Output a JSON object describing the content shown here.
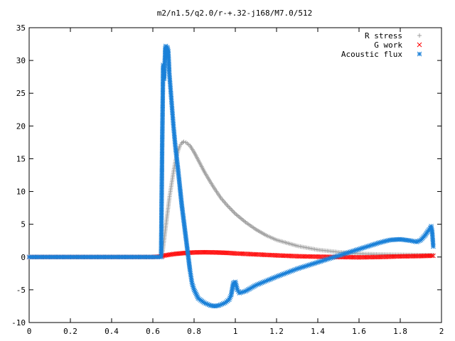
{
  "chart_data": {
    "type": "scatter",
    "title": "m2/n1.5/q2.0/r-+.32-j168/M7.0/512",
    "xlabel": "",
    "ylabel": "",
    "xlim": [
      0,
      2
    ],
    "ylim": [
      -10,
      35
    ],
    "x_ticks": [
      "0",
      "0.2",
      "0.4",
      "0.6",
      "0.8",
      "1",
      "1.2",
      "1.4",
      "1.6",
      "1.8",
      "2"
    ],
    "y_ticks": [
      "-10",
      "-5",
      "0",
      "5",
      "10",
      "15",
      "20",
      "25",
      "30",
      "35"
    ],
    "grid": false,
    "legend_position": "top-right",
    "series": [
      {
        "name": "R stress",
        "color": "#a0a0a0",
        "marker": "plus",
        "points": [
          [
            0.0,
            0.0
          ],
          [
            0.2,
            0.0
          ],
          [
            0.4,
            0.0
          ],
          [
            0.6,
            0.0
          ],
          [
            0.645,
            0.1
          ],
          [
            0.65,
            1.5
          ],
          [
            0.66,
            4.0
          ],
          [
            0.67,
            6.5
          ],
          [
            0.68,
            9.0
          ],
          [
            0.69,
            11.0
          ],
          [
            0.7,
            13.0
          ],
          [
            0.71,
            14.7
          ],
          [
            0.72,
            16.0
          ],
          [
            0.73,
            16.9
          ],
          [
            0.74,
            17.4
          ],
          [
            0.75,
            17.6
          ],
          [
            0.76,
            17.5
          ],
          [
            0.78,
            17.0
          ],
          [
            0.8,
            16.0
          ],
          [
            0.82,
            14.8
          ],
          [
            0.85,
            13.0
          ],
          [
            0.88,
            11.4
          ],
          [
            0.9,
            10.4
          ],
          [
            0.93,
            9.0
          ],
          [
            0.96,
            7.9
          ],
          [
            1.0,
            6.6
          ],
          [
            1.05,
            5.3
          ],
          [
            1.1,
            4.2
          ],
          [
            1.15,
            3.3
          ],
          [
            1.2,
            2.6
          ],
          [
            1.3,
            1.7
          ],
          [
            1.4,
            1.1
          ],
          [
            1.5,
            0.75
          ],
          [
            1.6,
            0.5
          ],
          [
            1.7,
            0.4
          ],
          [
            1.8,
            0.35
          ],
          [
            1.9,
            0.3
          ],
          [
            1.96,
            0.3
          ]
        ]
      },
      {
        "name": "G work",
        "color": "#ff0000",
        "marker": "cross",
        "points": [
          [
            0.0,
            0.0
          ],
          [
            0.2,
            0.0
          ],
          [
            0.4,
            0.0
          ],
          [
            0.6,
            0.0
          ],
          [
            0.645,
            0.1
          ],
          [
            0.65,
            0.2
          ],
          [
            0.7,
            0.45
          ],
          [
            0.75,
            0.6
          ],
          [
            0.8,
            0.7
          ],
          [
            0.85,
            0.72
          ],
          [
            0.9,
            0.7
          ],
          [
            0.95,
            0.65
          ],
          [
            1.0,
            0.55
          ],
          [
            1.1,
            0.4
          ],
          [
            1.2,
            0.25
          ],
          [
            1.3,
            0.12
          ],
          [
            1.4,
            0.05
          ],
          [
            1.5,
            0.0
          ],
          [
            1.6,
            -0.05
          ],
          [
            1.7,
            0.0
          ],
          [
            1.8,
            0.1
          ],
          [
            1.9,
            0.15
          ],
          [
            1.96,
            0.2
          ]
        ]
      },
      {
        "name": "Acoustic flux",
        "color": "#1a80d8",
        "marker": "star",
        "points": [
          [
            0.0,
            0.0
          ],
          [
            0.2,
            0.0
          ],
          [
            0.4,
            0.0
          ],
          [
            0.6,
            0.0
          ],
          [
            0.64,
            0.0
          ],
          [
            0.645,
            16.4
          ],
          [
            0.65,
            29.3
          ],
          [
            0.655,
            27.2
          ],
          [
            0.66,
            31.8
          ],
          [
            0.663,
            32.2
          ],
          [
            0.667,
            30.5
          ],
          [
            0.67,
            32.0
          ],
          [
            0.675,
            31.4
          ],
          [
            0.68,
            28.0
          ],
          [
            0.685,
            26.0
          ],
          [
            0.69,
            24.0
          ],
          [
            0.695,
            22.0
          ],
          [
            0.7,
            20.0
          ],
          [
            0.71,
            16.6
          ],
          [
            0.72,
            14.0
          ],
          [
            0.73,
            11.0
          ],
          [
            0.74,
            8.0
          ],
          [
            0.75,
            5.5
          ],
          [
            0.76,
            3.0
          ],
          [
            0.77,
            0.5
          ],
          [
            0.78,
            -2.0
          ],
          [
            0.79,
            -4.0
          ],
          [
            0.8,
            -5.0
          ],
          [
            0.82,
            -6.3
          ],
          [
            0.85,
            -7.0
          ],
          [
            0.88,
            -7.4
          ],
          [
            0.9,
            -7.5
          ],
          [
            0.92,
            -7.4
          ],
          [
            0.95,
            -7.0
          ],
          [
            0.97,
            -6.5
          ],
          [
            0.98,
            -5.8
          ],
          [
            0.99,
            -4.0
          ],
          [
            1.0,
            -3.8
          ],
          [
            1.01,
            -5.0
          ],
          [
            1.02,
            -5.5
          ],
          [
            1.05,
            -5.2
          ],
          [
            1.1,
            -4.3
          ],
          [
            1.2,
            -3.0
          ],
          [
            1.3,
            -1.8
          ],
          [
            1.4,
            -0.8
          ],
          [
            1.5,
            0.2
          ],
          [
            1.6,
            1.2
          ],
          [
            1.7,
            2.2
          ],
          [
            1.75,
            2.6
          ],
          [
            1.8,
            2.7
          ],
          [
            1.85,
            2.5
          ],
          [
            1.88,
            2.3
          ],
          [
            1.9,
            2.6
          ],
          [
            1.92,
            3.3
          ],
          [
            1.94,
            4.2
          ],
          [
            1.95,
            4.7
          ],
          [
            1.955,
            3.8
          ],
          [
            1.96,
            1.6
          ]
        ]
      }
    ]
  }
}
